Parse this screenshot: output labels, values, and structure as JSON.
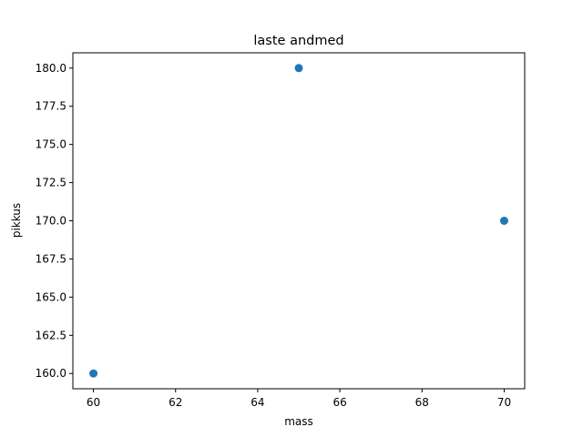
{
  "chart_data": {
    "type": "scatter",
    "title": "laste andmed",
    "xlabel": "mass",
    "ylabel": "pikkus",
    "x": [
      60,
      65,
      70
    ],
    "y": [
      160,
      180,
      170
    ],
    "xlim": [
      59.5,
      70.5
    ],
    "ylim": [
      159,
      181
    ],
    "xticks": [
      60,
      62,
      64,
      66,
      68,
      70
    ],
    "xtick_labels": [
      "60",
      "62",
      "64",
      "66",
      "68",
      "70"
    ],
    "yticks": [
      160,
      162.5,
      165,
      167.5,
      170,
      172.5,
      175,
      177.5,
      180
    ],
    "ytick_labels": [
      "160.0",
      "162.5",
      "165.0",
      "167.5",
      "170.0",
      "172.5",
      "175.0",
      "177.5",
      "180.0"
    ],
    "grid": false,
    "colors": {
      "marker": "#1f77b4"
    }
  }
}
